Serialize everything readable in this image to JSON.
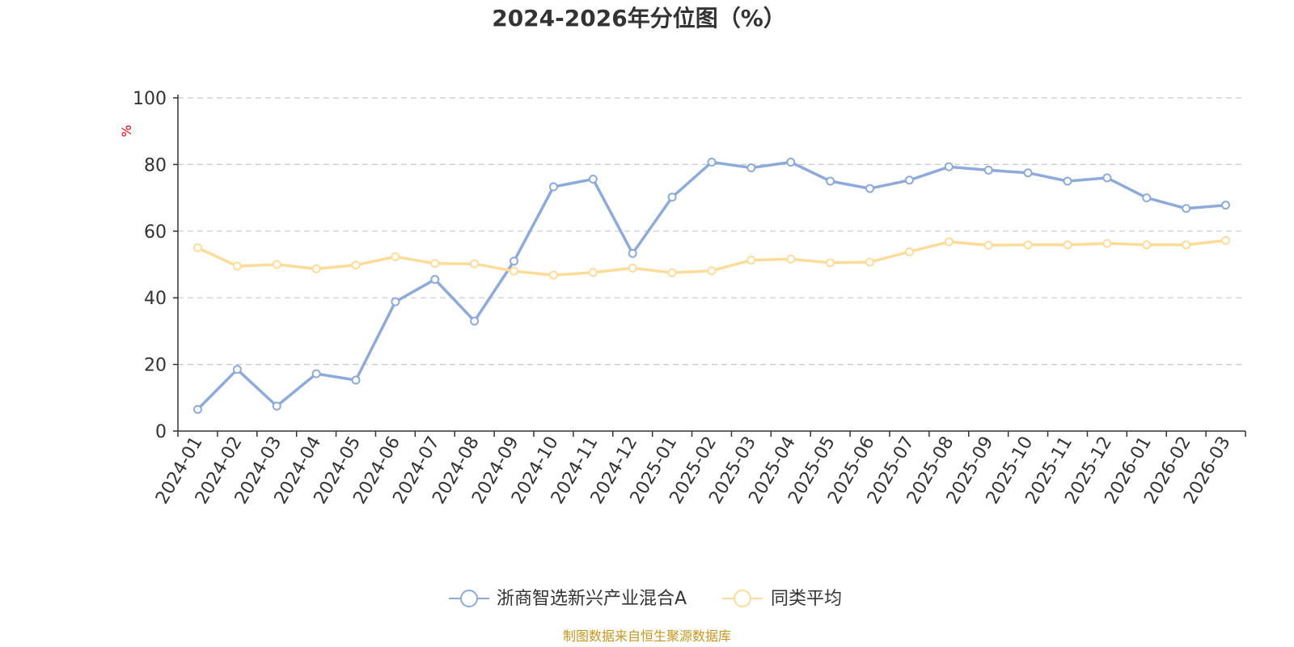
{
  "chart_data": {
    "type": "line",
    "title": "2024-2026年分位图（%）",
    "ylabel": "%",
    "xlabel": "",
    "ylim": [
      0,
      100
    ],
    "yticks": [
      0,
      20,
      40,
      60,
      80,
      100
    ],
    "grid": "horizontal-dashed",
    "legend_position": "bottom-center",
    "categories": [
      "2024-01",
      "2024-02",
      "2024-03",
      "2024-04",
      "2024-05",
      "2024-06",
      "2024-07",
      "2024-08",
      "2024-09",
      "2024-10",
      "2024-11",
      "2024-12",
      "2025-01",
      "2025-02",
      "2025-03",
      "2025-04",
      "2025-05",
      "2025-06",
      "2025-07",
      "2025-08",
      "2025-09",
      "2025-10",
      "2025-11",
      "2025-12",
      "2026-01",
      "2026-02",
      "2026-03"
    ],
    "series": [
      {
        "name": "浙商智选新兴产业混合A",
        "color": "#8eaadb",
        "values": [
          6.5,
          18.5,
          7.5,
          17.2,
          15.3,
          38.8,
          45.5,
          33.0,
          51.0,
          73.3,
          75.6,
          53.3,
          70.2,
          80.7,
          79.0,
          80.7,
          75.0,
          72.8,
          75.3,
          79.3,
          78.3,
          77.5,
          75.0,
          76.0,
          70.0,
          66.8,
          67.8
        ]
      },
      {
        "name": "同类平均",
        "color": "#fddc99",
        "values": [
          55.0,
          49.5,
          50.0,
          48.7,
          49.8,
          52.3,
          50.3,
          50.2,
          48.0,
          46.8,
          47.6,
          48.9,
          47.5,
          48.1,
          51.3,
          51.6,
          50.5,
          50.7,
          53.8,
          56.8,
          55.8,
          55.9,
          55.9,
          56.3,
          55.9,
          55.9,
          57.2
        ]
      }
    ]
  },
  "footer": {
    "source": "制图数据来自恒生聚源数据库"
  }
}
